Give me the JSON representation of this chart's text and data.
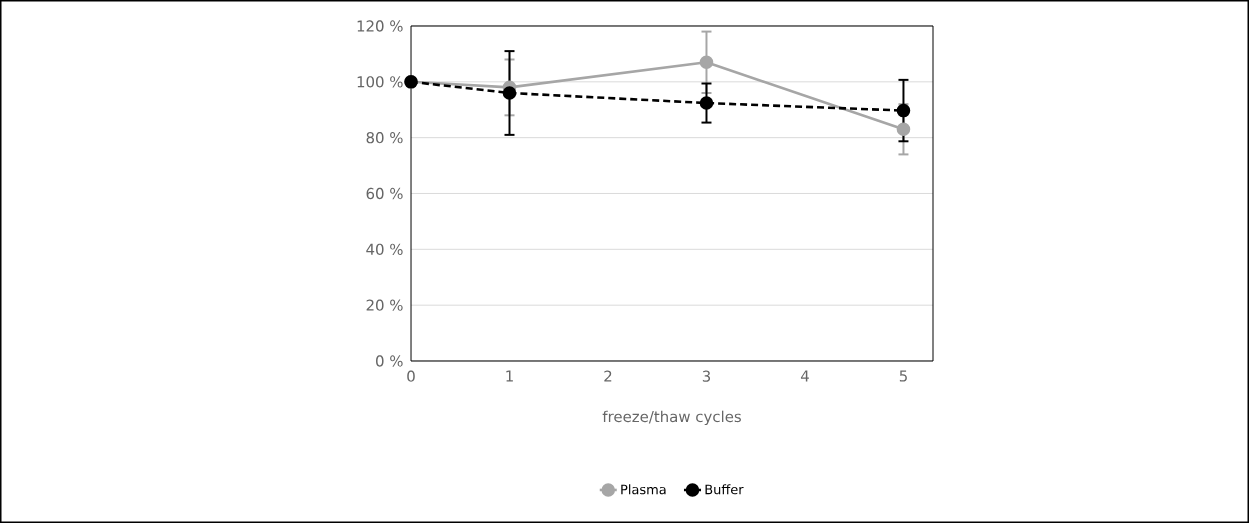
{
  "chart_data": {
    "type": "line",
    "xlabel": "freeze/thaw cycles",
    "xlim": [
      0,
      5.3
    ],
    "xticks": [
      0,
      1,
      2,
      3,
      4,
      5
    ],
    "ylim": [
      0,
      120
    ],
    "yticks": [
      {
        "value": 0,
        "label": "0 %"
      },
      {
        "value": 20,
        "label": "20 %"
      },
      {
        "value": 40,
        "label": "40 %"
      },
      {
        "value": 60,
        "label": "60 %"
      },
      {
        "value": 80,
        "label": "80 %"
      },
      {
        "value": 100,
        "label": "100 %"
      },
      {
        "value": 120,
        "label": "120 %"
      }
    ],
    "grid": "y",
    "legend": "bottom",
    "marker": "circle",
    "series": [
      {
        "name": "Plasma",
        "color": "#a6a6a6",
        "line_style": "solid",
        "x": [
          0,
          1,
          3,
          5
        ],
        "values": [
          100,
          98,
          107,
          83
        ],
        "errors": [
          null,
          10,
          11,
          9
        ]
      },
      {
        "name": "Buffer",
        "color": "#000000",
        "line_style": "dashed",
        "x": [
          0,
          1,
          3,
          5
        ],
        "values": [
          100,
          96,
          92.4,
          89.7
        ],
        "errors": [
          null,
          15,
          7,
          11
        ]
      }
    ]
  }
}
